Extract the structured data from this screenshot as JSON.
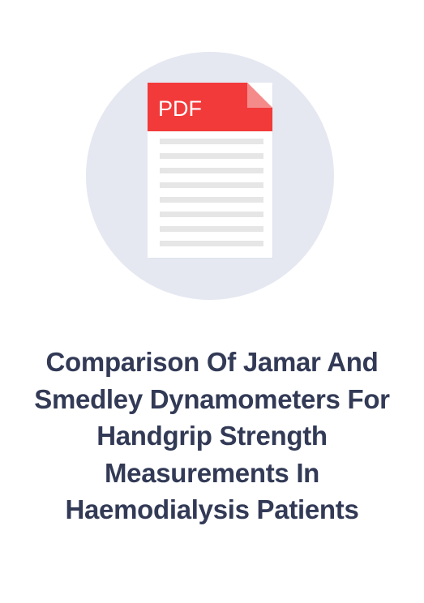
{
  "document": {
    "file_type_label": "PDF",
    "title": "Comparison Of Jamar And Smedley Dynamometers For Handgrip Strength Measurements In Haemodialysis Patients"
  },
  "icons": {
    "document_icon": "pdf-file-icon"
  },
  "colors": {
    "background": "#ffffff",
    "circle": "#e5e8f1",
    "pdf_banner": "#f23a3a",
    "pdf_fold": "#f58a8a",
    "text_lines": "#e6e6e6",
    "title_text": "#323a56"
  }
}
